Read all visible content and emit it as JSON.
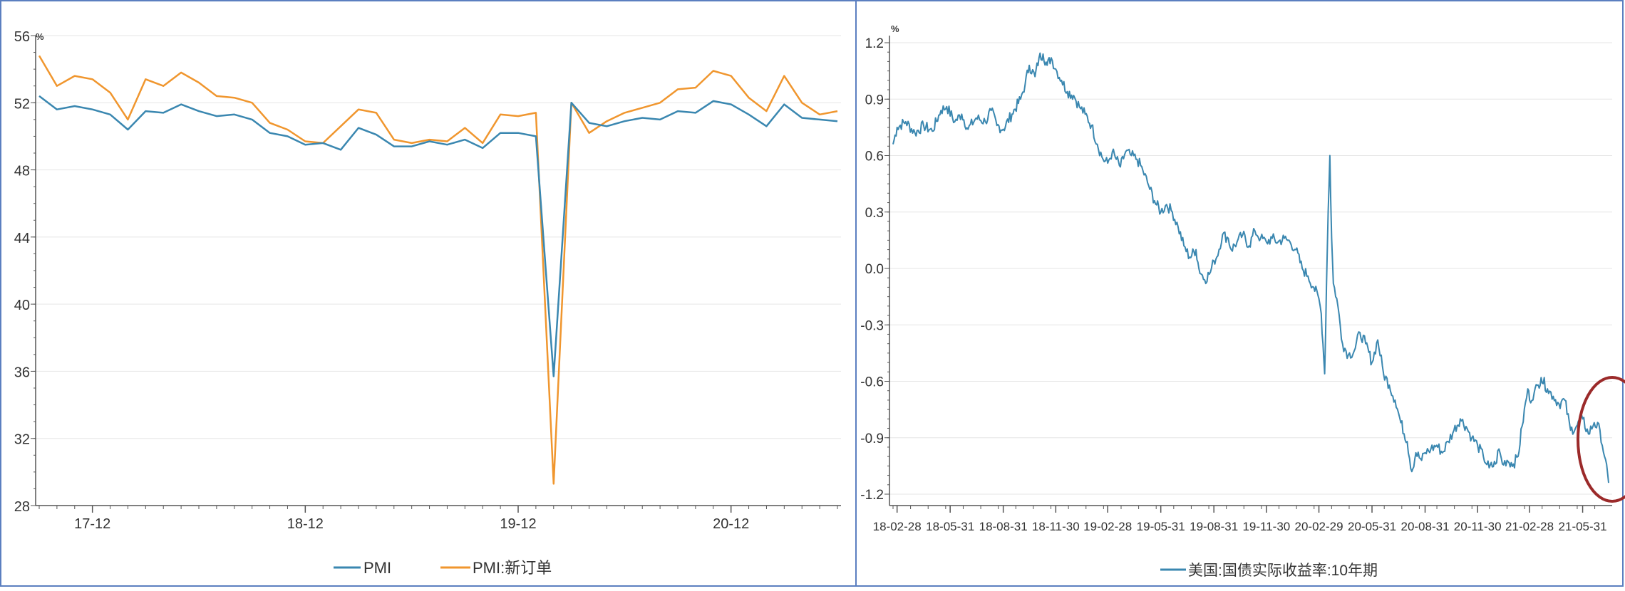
{
  "colors": {
    "pmi": "#3a87b0",
    "new_orders": "#f0962e",
    "us_real_yield": "#3a87b0",
    "circle": "#9b2a2a",
    "frame": "#5b7fc0",
    "grid": "#e6e6e6",
    "axis": "#555555"
  },
  "chart_data": [
    {
      "type": "line",
      "unit_label": "%",
      "ylim": [
        28,
        56
      ],
      "y_ticks": [
        "28",
        "32",
        "36",
        "40",
        "44",
        "48",
        "52",
        "56"
      ],
      "x_tick_labels": [
        "17-12",
        "18-12",
        "19-12",
        "20-12"
      ],
      "x_tick_positions": [
        3,
        15,
        27,
        39
      ],
      "x": [
        "17-10",
        "17-11",
        "17-12",
        "18-01",
        "18-02",
        "18-03",
        "18-04",
        "18-05",
        "18-06",
        "18-07",
        "18-08",
        "18-09",
        "18-10",
        "18-11",
        "18-12",
        "19-01",
        "19-02",
        "19-03",
        "19-04",
        "19-05",
        "19-06",
        "19-07",
        "19-08",
        "19-09",
        "19-10",
        "19-11",
        "19-12",
        "20-01",
        "20-02",
        "20-03",
        "20-04",
        "20-05",
        "20-06",
        "20-07",
        "20-08",
        "20-09",
        "20-10",
        "20-11",
        "20-12",
        "21-01",
        "21-02",
        "21-03",
        "21-04",
        "21-05",
        "21-06",
        "21-07"
      ],
      "series": [
        {
          "name": "PMI",
          "values": [
            52.4,
            51.6,
            51.8,
            51.6,
            51.3,
            50.4,
            51.5,
            51.4,
            51.9,
            51.5,
            51.2,
            51.3,
            51.0,
            50.2,
            50.0,
            49.5,
            49.6,
            49.2,
            50.5,
            50.1,
            49.4,
            49.4,
            49.7,
            49.5,
            49.8,
            49.3,
            50.2,
            50.2,
            50.0,
            35.7,
            52.0,
            50.8,
            50.6,
            50.9,
            51.1,
            51.0,
            51.5,
            51.4,
            52.1,
            51.9,
            51.3,
            50.6,
            51.9,
            51.1,
            51.0,
            50.9
          ]
        },
        {
          "name": "PMI:新订单",
          "values": [
            54.8,
            53.0,
            53.6,
            53.4,
            52.6,
            51.0,
            53.4,
            53.0,
            53.8,
            53.2,
            52.4,
            52.3,
            52.0,
            50.8,
            50.4,
            49.7,
            49.6,
            50.6,
            51.6,
            51.4,
            49.8,
            49.6,
            49.8,
            49.7,
            50.5,
            49.6,
            51.3,
            51.2,
            51.4,
            29.3,
            52.0,
            50.2,
            50.9,
            51.4,
            51.7,
            52.0,
            52.8,
            52.9,
            53.9,
            53.6,
            52.3,
            51.5,
            53.6,
            52.0,
            51.3,
            51.5
          ]
        }
      ],
      "legend_position": "bottom"
    },
    {
      "type": "line",
      "unit_label": "%",
      "ylim": [
        -1.2,
        1.2
      ],
      "y_ticks": [
        "-1.2",
        "-0.9",
        "-0.6",
        "-0.3",
        "0.0",
        "0.3",
        "0.6",
        "0.9",
        "1.2"
      ],
      "x_tick_labels": [
        "18-02-28",
        "18-05-31",
        "18-08-31",
        "18-11-30",
        "19-02-28",
        "19-05-31",
        "19-08-31",
        "19-11-30",
        "20-02-29",
        "20-05-31",
        "20-08-31",
        "20-11-30",
        "21-02-28",
        "21-05-31"
      ],
      "x_range": [
        "2018-02-21",
        "2021-07-15"
      ],
      "series": [
        {
          "name": "美国:国债实际收益率:10年期",
          "points": [
            [
              "2018-02-21",
              0.66
            ],
            [
              "2018-02-28",
              0.75
            ],
            [
              "2018-03-15",
              0.78
            ],
            [
              "2018-03-31",
              0.72
            ],
            [
              "2018-04-15",
              0.76
            ],
            [
              "2018-04-30",
              0.73
            ],
            [
              "2018-05-15",
              0.84
            ],
            [
              "2018-05-25",
              0.86
            ],
            [
              "2018-06-08",
              0.78
            ],
            [
              "2018-06-20",
              0.82
            ],
            [
              "2018-07-01",
              0.74
            ],
            [
              "2018-07-15",
              0.8
            ],
            [
              "2018-07-31",
              0.78
            ],
            [
              "2018-08-10",
              0.84
            ],
            [
              "2018-08-20",
              0.76
            ],
            [
              "2018-08-31",
              0.74
            ],
            [
              "2018-09-15",
              0.82
            ],
            [
              "2018-09-30",
              0.9
            ],
            [
              "2018-10-08",
              0.98
            ],
            [
              "2018-10-15",
              1.08
            ],
            [
              "2018-10-25",
              1.02
            ],
            [
              "2018-11-01",
              1.12
            ],
            [
              "2018-11-08",
              1.14
            ],
            [
              "2018-11-15",
              1.08
            ],
            [
              "2018-11-22",
              1.12
            ],
            [
              "2018-11-30",
              1.06
            ],
            [
              "2018-12-10",
              1.0
            ],
            [
              "2018-12-20",
              0.94
            ],
            [
              "2018-12-31",
              0.92
            ],
            [
              "2019-01-10",
              0.86
            ],
            [
              "2019-01-20",
              0.82
            ],
            [
              "2019-01-31",
              0.76
            ],
            [
              "2019-02-10",
              0.66
            ],
            [
              "2019-02-20",
              0.58
            ],
            [
              "2019-02-28",
              0.56
            ],
            [
              "2019-03-08",
              0.62
            ],
            [
              "2019-03-15",
              0.58
            ],
            [
              "2019-03-22",
              0.54
            ],
            [
              "2019-03-31",
              0.62
            ],
            [
              "2019-04-10",
              0.6
            ],
            [
              "2019-04-20",
              0.58
            ],
            [
              "2019-04-30",
              0.52
            ],
            [
              "2019-05-10",
              0.44
            ],
            [
              "2019-05-20",
              0.36
            ],
            [
              "2019-05-31",
              0.3
            ],
            [
              "2019-06-10",
              0.34
            ],
            [
              "2019-06-20",
              0.3
            ],
            [
              "2019-06-30",
              0.22
            ],
            [
              "2019-07-10",
              0.12
            ],
            [
              "2019-07-20",
              0.06
            ],
            [
              "2019-07-31",
              0.1
            ],
            [
              "2019-08-05",
              0.0
            ],
            [
              "2019-08-15",
              -0.06
            ],
            [
              "2019-08-25",
              -0.02
            ],
            [
              "2019-08-31",
              0.04
            ],
            [
              "2019-09-05",
              0.06
            ],
            [
              "2019-09-15",
              0.18
            ],
            [
              "2019-09-25",
              0.16
            ],
            [
              "2019-09-30",
              0.1
            ],
            [
              "2019-10-10",
              0.14
            ],
            [
              "2019-10-20",
              0.18
            ],
            [
              "2019-10-31",
              0.12
            ],
            [
              "2019-11-10",
              0.2
            ],
            [
              "2019-11-20",
              0.16
            ],
            [
              "2019-11-30",
              0.14
            ],
            [
              "2019-12-10",
              0.16
            ],
            [
              "2019-12-20",
              0.14
            ],
            [
              "2019-12-31",
              0.16
            ],
            [
              "2020-01-10",
              0.14
            ],
            [
              "2020-01-20",
              0.1
            ],
            [
              "2020-01-31",
              0.0
            ],
            [
              "2020-02-10",
              -0.04
            ],
            [
              "2020-02-20",
              -0.1
            ],
            [
              "2020-02-29",
              -0.16
            ],
            [
              "2020-03-04",
              -0.24
            ],
            [
              "2020-03-07",
              -0.4
            ],
            [
              "2020-03-10",
              -0.56
            ],
            [
              "2020-03-13",
              -0.1
            ],
            [
              "2020-03-16",
              0.3
            ],
            [
              "2020-03-19",
              0.6
            ],
            [
              "2020-03-22",
              0.16
            ],
            [
              "2020-03-25",
              -0.08
            ],
            [
              "2020-03-31",
              -0.16
            ],
            [
              "2020-04-10",
              -0.4
            ],
            [
              "2020-04-20",
              -0.46
            ],
            [
              "2020-04-30",
              -0.44
            ],
            [
              "2020-05-10",
              -0.34
            ],
            [
              "2020-05-20",
              -0.4
            ],
            [
              "2020-05-31",
              -0.5
            ],
            [
              "2020-06-10",
              -0.38
            ],
            [
              "2020-06-20",
              -0.56
            ],
            [
              "2020-06-30",
              -0.62
            ],
            [
              "2020-07-10",
              -0.7
            ],
            [
              "2020-07-20",
              -0.82
            ],
            [
              "2020-07-31",
              -0.92
            ],
            [
              "2020-08-08",
              -1.08
            ],
            [
              "2020-08-15",
              -0.98
            ],
            [
              "2020-08-25",
              -1.02
            ],
            [
              "2020-08-31",
              -0.98
            ],
            [
              "2020-09-10",
              -0.96
            ],
            [
              "2020-09-20",
              -0.94
            ],
            [
              "2020-09-30",
              -0.98
            ],
            [
              "2020-10-10",
              -0.92
            ],
            [
              "2020-10-20",
              -0.86
            ],
            [
              "2020-10-31",
              -0.8
            ],
            [
              "2020-11-10",
              -0.84
            ],
            [
              "2020-11-20",
              -0.9
            ],
            [
              "2020-11-30",
              -0.94
            ],
            [
              "2020-12-10",
              -1.0
            ],
            [
              "2020-12-20",
              -1.06
            ],
            [
              "2020-12-31",
              -1.04
            ],
            [
              "2021-01-06",
              -0.96
            ],
            [
              "2021-01-12",
              -1.04
            ],
            [
              "2021-01-20",
              -1.02
            ],
            [
              "2021-01-31",
              -1.04
            ],
            [
              "2021-02-08",
              -1.0
            ],
            [
              "2021-02-15",
              -0.84
            ],
            [
              "2021-02-25",
              -0.64
            ],
            [
              "2021-02-28",
              -0.7
            ],
            [
              "2021-03-08",
              -0.66
            ],
            [
              "2021-03-15",
              -0.62
            ],
            [
              "2021-03-20",
              -0.58
            ],
            [
              "2021-03-31",
              -0.64
            ],
            [
              "2021-04-10",
              -0.68
            ],
            [
              "2021-04-20",
              -0.72
            ],
            [
              "2021-04-30",
              -0.7
            ],
            [
              "2021-05-10",
              -0.86
            ],
            [
              "2021-05-20",
              -0.84
            ],
            [
              "2021-05-31",
              -0.8
            ],
            [
              "2021-06-10",
              -0.88
            ],
            [
              "2021-06-20",
              -0.82
            ],
            [
              "2021-06-30",
              -0.86
            ],
            [
              "2021-07-08",
              -1.0
            ],
            [
              "2021-07-15",
              -1.14
            ]
          ]
        }
      ],
      "legend_position": "bottom",
      "annotation": "circle"
    }
  ]
}
